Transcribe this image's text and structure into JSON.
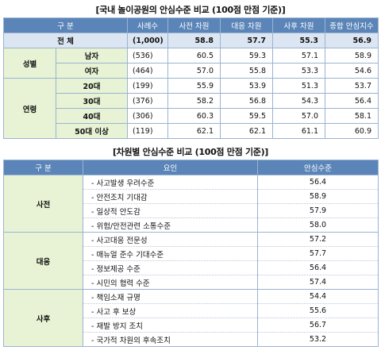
{
  "table1": {
    "title": "[국내 놀이공원의 안심수준 비교 (100점 만점 기준)]",
    "headers": [
      "구 분",
      "사례수",
      "사전 차원",
      "대응 차원",
      "사후 차원",
      "종합 안심지수"
    ],
    "total": {
      "label": "전 체",
      "n": "(1,000)",
      "values": [
        "58.8",
        "57.7",
        "55.3",
        "56.9"
      ]
    },
    "groups": [
      {
        "name": "성별",
        "rows": [
          {
            "label": "남자",
            "n": "(536)",
            "values": [
              "60.5",
              "59.3",
              "57.1",
              "58.9"
            ]
          },
          {
            "label": "여자",
            "n": "(464)",
            "values": [
              "57.0",
              "55.8",
              "53.3",
              "54.6"
            ]
          }
        ]
      },
      {
        "name": "연령",
        "rows": [
          {
            "label": "20대",
            "n": "(199)",
            "values": [
              "55.9",
              "53.9",
              "51.3",
              "53.7"
            ]
          },
          {
            "label": "30대",
            "n": "(376)",
            "values": [
              "58.2",
              "56.8",
              "54.3",
              "56.4"
            ]
          },
          {
            "label": "40대",
            "n": "(306)",
            "values": [
              "60.3",
              "59.5",
              "57.0",
              "58.1"
            ]
          },
          {
            "label": "50대 이상",
            "n": "(119)",
            "values": [
              "62.1",
              "62.1",
              "61.1",
              "60.9"
            ]
          }
        ]
      }
    ]
  },
  "table2": {
    "title": "[차원별 안심수준 비교 (100점 만점 기준)]",
    "headers": [
      "구 분",
      "요인",
      "안심수준"
    ],
    "groups": [
      {
        "name": "사전",
        "rows": [
          {
            "factor": "- 사고발생 우려수준",
            "value": "56.4"
          },
          {
            "factor": "- 안전조치 기대감",
            "value": "58.9"
          },
          {
            "factor": "- 일상적 안도감",
            "value": "57.9"
          },
          {
            "factor": "- 위험/안전관련 소통수준",
            "value": "58.0"
          }
        ]
      },
      {
        "name": "대응",
        "rows": [
          {
            "factor": "- 사고대응 전문성",
            "value": "57.2"
          },
          {
            "factor": "- 매뉴얼 준수 기대수준",
            "value": "57.7"
          },
          {
            "factor": "- 정보제공 수준",
            "value": "56.4"
          },
          {
            "factor": "- 시민의 협력 수준",
            "value": "57.4"
          }
        ]
      },
      {
        "name": "사후",
        "rows": [
          {
            "factor": "- 책임소재 규명",
            "value": "54.4"
          },
          {
            "factor": "- 사고 후 보상",
            "value": "55.6"
          },
          {
            "factor": "- 재발 방지 조치",
            "value": "56.7"
          },
          {
            "factor": "- 국가적 차원의 후속조치",
            "value": "53.2"
          }
        ]
      }
    ]
  }
}
